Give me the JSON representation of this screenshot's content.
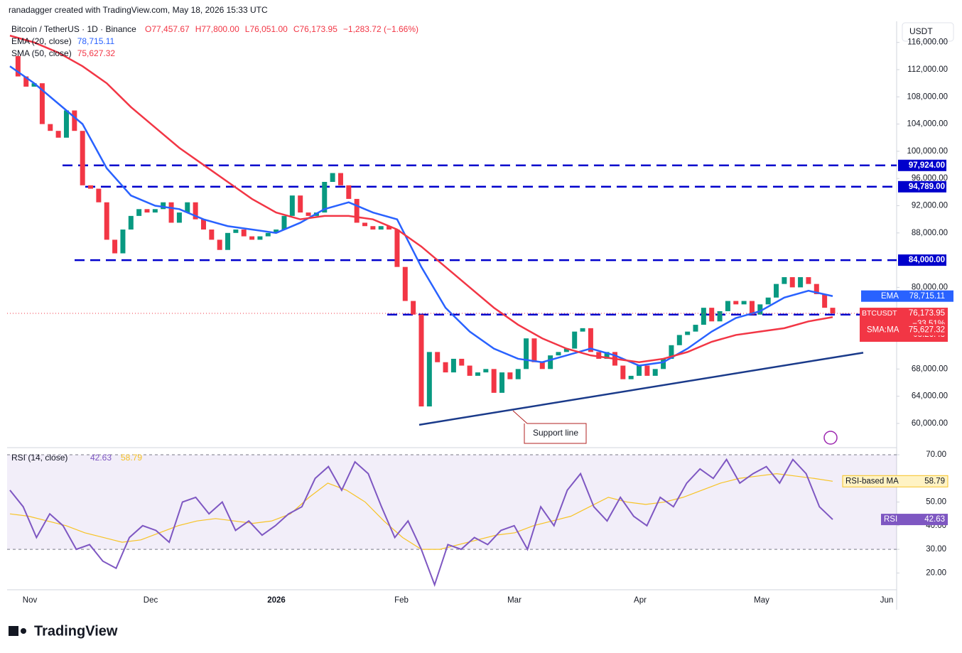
{
  "header": {
    "credit": "ranadagger created with TradingView.com, May 18, 2026 15:33 UTC",
    "currency": "USDT",
    "logo": "TradingView"
  },
  "chart_data": {
    "type": "candlestick",
    "title": "Bitcoin / TetherUS · 1D · Binance",
    "ohlc_text": [
      "O77,457.67",
      "H77,800.00",
      "L76,051.00",
      "C76,173.95",
      "−1,283.72 (−1.66%)"
    ],
    "close": [
      114000,
      111000,
      109500,
      110000,
      104000,
      103000,
      102000,
      106000,
      103000,
      95000,
      94500,
      92500,
      87000,
      85000,
      88500,
      90500,
      91500,
      91000,
      91500,
      92500,
      89500,
      91000,
      92500,
      90000,
      88500,
      87000,
      85500,
      88000,
      88500,
      87500,
      87000,
      87500,
      88000,
      88500,
      90500,
      93500,
      91000,
      90500,
      91000,
      95500,
      96800,
      95000,
      93000,
      89500,
      89000,
      88500,
      89000,
      88500,
      83000,
      78000,
      76000,
      62500,
      70500,
      69000,
      67500,
      69500,
      68500,
      67000,
      67500,
      68000,
      64500,
      67500,
      66500,
      68000,
      72500,
      69000,
      68000,
      70000,
      70500,
      71000,
      73500,
      74000,
      70500,
      69500,
      70500,
      68500,
      66500,
      67000,
      68500,
      67000,
      68000,
      69500,
      71500,
      73000,
      73500,
      74500,
      77000,
      75000,
      76500,
      78000,
      77500,
      78000,
      76000,
      77500,
      78500,
      80500,
      81500,
      80000,
      81500,
      80500,
      79000,
      77000,
      76173.95
    ],
    "up_color": "#089981",
    "down_color": "#f23645",
    "ylim": [
      56650,
      118580
    ],
    "yticks": [
      {
        "value": 116000,
        "label": "116,000.00"
      },
      {
        "value": 112000,
        "label": "112,000.00"
      },
      {
        "value": 108000,
        "label": "108,000.00"
      },
      {
        "value": 104000,
        "label": "104,000.00"
      },
      {
        "value": 100000,
        "label": "100,000.00"
      },
      {
        "value": 96000,
        "label": "96,000.00"
      },
      {
        "value": 92000,
        "label": "92,000.00"
      },
      {
        "value": 88000,
        "label": "88,000.00"
      },
      {
        "value": 80000,
        "label": "80,000.00"
      },
      {
        "value": 68000,
        "label": "68,000.00"
      },
      {
        "value": 64000,
        "label": "64,000.00"
      },
      {
        "value": 60000,
        "label": "60,000.00"
      }
    ],
    "series": [
      {
        "name": "EMA (20, close)",
        "short": "EMA",
        "color": "#2962ff",
        "value_label": "78,715.11",
        "values": [
          112500,
          110000,
          107000,
          104000,
          97500,
          93500,
          92000,
          91500,
          90000,
          89000,
          88500,
          88000,
          89500,
          91500,
          92500,
          91000,
          90000,
          83000,
          77000,
          73500,
          71000,
          69500,
          69000,
          70000,
          71000,
          70000,
          68500,
          69000,
          71000,
          73500,
          75500,
          76500,
          78500,
          79500,
          78715.11
        ]
      },
      {
        "name": "SMA (50, close)",
        "short": "SMA:MA",
        "color": "#f23645",
        "value_label": "75,627.32",
        "values": [
          117000,
          116000,
          114500,
          112500,
          110000,
          106500,
          103500,
          100500,
          98000,
          95500,
          93000,
          91000,
          90000,
          90500,
          90500,
          90000,
          88500,
          86000,
          83000,
          80000,
          77000,
          74500,
          72500,
          71000,
          70000,
          69500,
          69000,
          69500,
          70500,
          72000,
          73000,
          73500,
          74000,
          75000,
          75627.32
        ]
      }
    ],
    "levels": [
      {
        "value": 97924,
        "label": "97,924.00"
      },
      {
        "value": 94789,
        "label": "94,789.00"
      },
      {
        "value": 84000,
        "label": "84,000.00"
      },
      {
        "value": 76000,
        "label": "76,000.00"
      }
    ],
    "level_color": "#0000cc",
    "support": {
      "label": "Support line",
      "values": [
        59800,
        70400
      ],
      "color": "#1a3a8a"
    },
    "last": {
      "name": "BTCUSDT",
      "label": "76,173.95",
      "change": "−33.51%",
      "countdown": "08:26:48"
    },
    "xlabels": [
      "Nov",
      "Dec",
      "2026",
      "Feb",
      "Mar",
      "Apr",
      "May",
      "Jun"
    ],
    "rsi": {
      "title": "RSI (14, close)",
      "rsi_name": "RSI",
      "ma_name": "RSI-based MA",
      "value_label": "42.63",
      "ma_label": "58.79",
      "color": "#7e57c2",
      "ma_color": "#f7c325",
      "values": [
        55,
        48,
        35,
        45,
        40,
        30,
        32,
        25,
        22,
        35,
        40,
        38,
        33,
        50,
        52,
        45,
        50,
        38,
        42,
        36,
        40,
        45,
        48,
        60,
        65,
        55,
        67,
        62,
        48,
        35,
        42,
        30,
        15,
        32,
        30,
        35,
        32,
        38,
        40,
        30,
        48,
        40,
        55,
        62,
        48,
        42,
        52,
        44,
        40,
        52,
        48,
        58,
        64,
        60,
        68,
        58,
        62,
        65,
        58,
        68,
        62,
        48,
        42.63
      ],
      "ma": [
        45,
        44,
        42,
        40,
        37,
        35,
        33,
        34,
        37,
        40,
        42,
        43,
        42,
        41,
        42,
        45,
        52,
        58,
        55,
        50,
        42,
        35,
        30,
        30,
        32,
        34,
        36,
        37,
        40,
        42,
        44,
        48,
        52,
        50,
        49,
        50,
        52,
        55,
        58,
        60,
        61,
        62,
        61,
        60,
        58.79
      ],
      "ylim": [
        12.9,
        71.2
      ],
      "band": [
        30,
        70
      ],
      "yticks": [
        {
          "value": 70,
          "label": "70.00"
        },
        {
          "value": 50,
          "label": "50.00"
        },
        {
          "value": 40,
          "label": "40.00"
        },
        {
          "value": 30,
          "label": "30.00"
        },
        {
          "value": 20,
          "label": "20.00"
        }
      ]
    }
  }
}
